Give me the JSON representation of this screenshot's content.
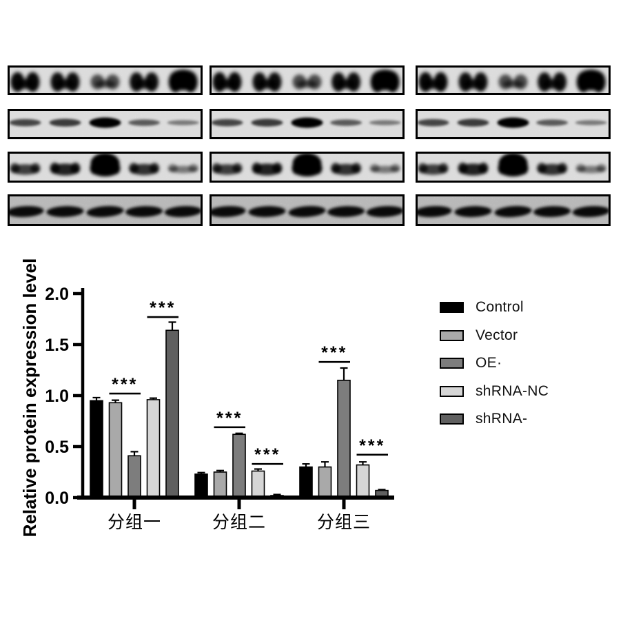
{
  "chart_data": {
    "type": "bar",
    "title": "",
    "xlabel": "",
    "ylabel": "Relative protein expression level",
    "ylim": [
      0,
      2.0
    ],
    "yticks": [
      0.0,
      0.5,
      1.0,
      1.5,
      2.0
    ],
    "ytick_labels": [
      "0.0",
      "0.5",
      "1.0",
      "1.5",
      "2.0"
    ],
    "grid": false,
    "legend_position": "right",
    "categories": [
      "分组一",
      "分组二",
      "分组三"
    ],
    "series": [
      {
        "name": "Control",
        "color": "#000000",
        "values": [
          0.95,
          0.23,
          0.3
        ],
        "errors": [
          0.03,
          0.015,
          0.03
        ]
      },
      {
        "name": "Vector",
        "color": "#a9a9a9",
        "values": [
          0.93,
          0.25,
          0.3
        ],
        "errors": [
          0.025,
          0.015,
          0.05
        ]
      },
      {
        "name": "OE·",
        "color": "#7d7d7d",
        "values": [
          0.41,
          0.62,
          1.15
        ],
        "errors": [
          0.04,
          0.01,
          0.12
        ]
      },
      {
        "name": "shRNA-NC",
        "color": "#d6d6d6",
        "values": [
          0.96,
          0.26,
          0.32
        ],
        "errors": [
          0.015,
          0.02,
          0.03
        ]
      },
      {
        "name": "shRNA-",
        "color": "#606060",
        "values": [
          1.64,
          0.02,
          0.07
        ],
        "errors": [
          0.08,
          0.01,
          0.008
        ]
      }
    ],
    "significance": [
      {
        "group": 0,
        "pair": [
          1,
          2
        ],
        "label": "***",
        "line_y": 1.02
      },
      {
        "group": 0,
        "pair": [
          3,
          4
        ],
        "label": "***",
        "line_y": 1.77
      },
      {
        "group": 1,
        "pair": [
          1,
          2
        ],
        "label": "***",
        "line_y": 0.69
      },
      {
        "group": 1,
        "pair": [
          3,
          4
        ],
        "label": "***",
        "line_y": 0.33
      },
      {
        "group": 2,
        "pair": [
          1,
          2
        ],
        "label": "***",
        "line_y": 1.33
      },
      {
        "group": 2,
        "pair": [
          3,
          4
        ],
        "label": "***",
        "line_y": 0.42
      }
    ]
  },
  "blots": {
    "columns": 3,
    "lanes_per_panel": 5,
    "rows": [
      {
        "name": "band-row-1",
        "shape": "double-blob",
        "intensities": [
          0.92,
          0.88,
          0.5,
          0.88,
          1.0
        ]
      },
      {
        "name": "band-row-2",
        "shape": "thin",
        "intensities": [
          0.55,
          0.62,
          1.0,
          0.42,
          0.22
        ]
      },
      {
        "name": "band-row-3",
        "shape": "medium",
        "intensities": [
          0.6,
          0.78,
          1.0,
          0.68,
          0.22
        ]
      },
      {
        "name": "band-row-4",
        "shape": "uniform",
        "intensities": [
          0.95,
          0.95,
          0.95,
          0.92,
          0.95
        ]
      }
    ]
  }
}
